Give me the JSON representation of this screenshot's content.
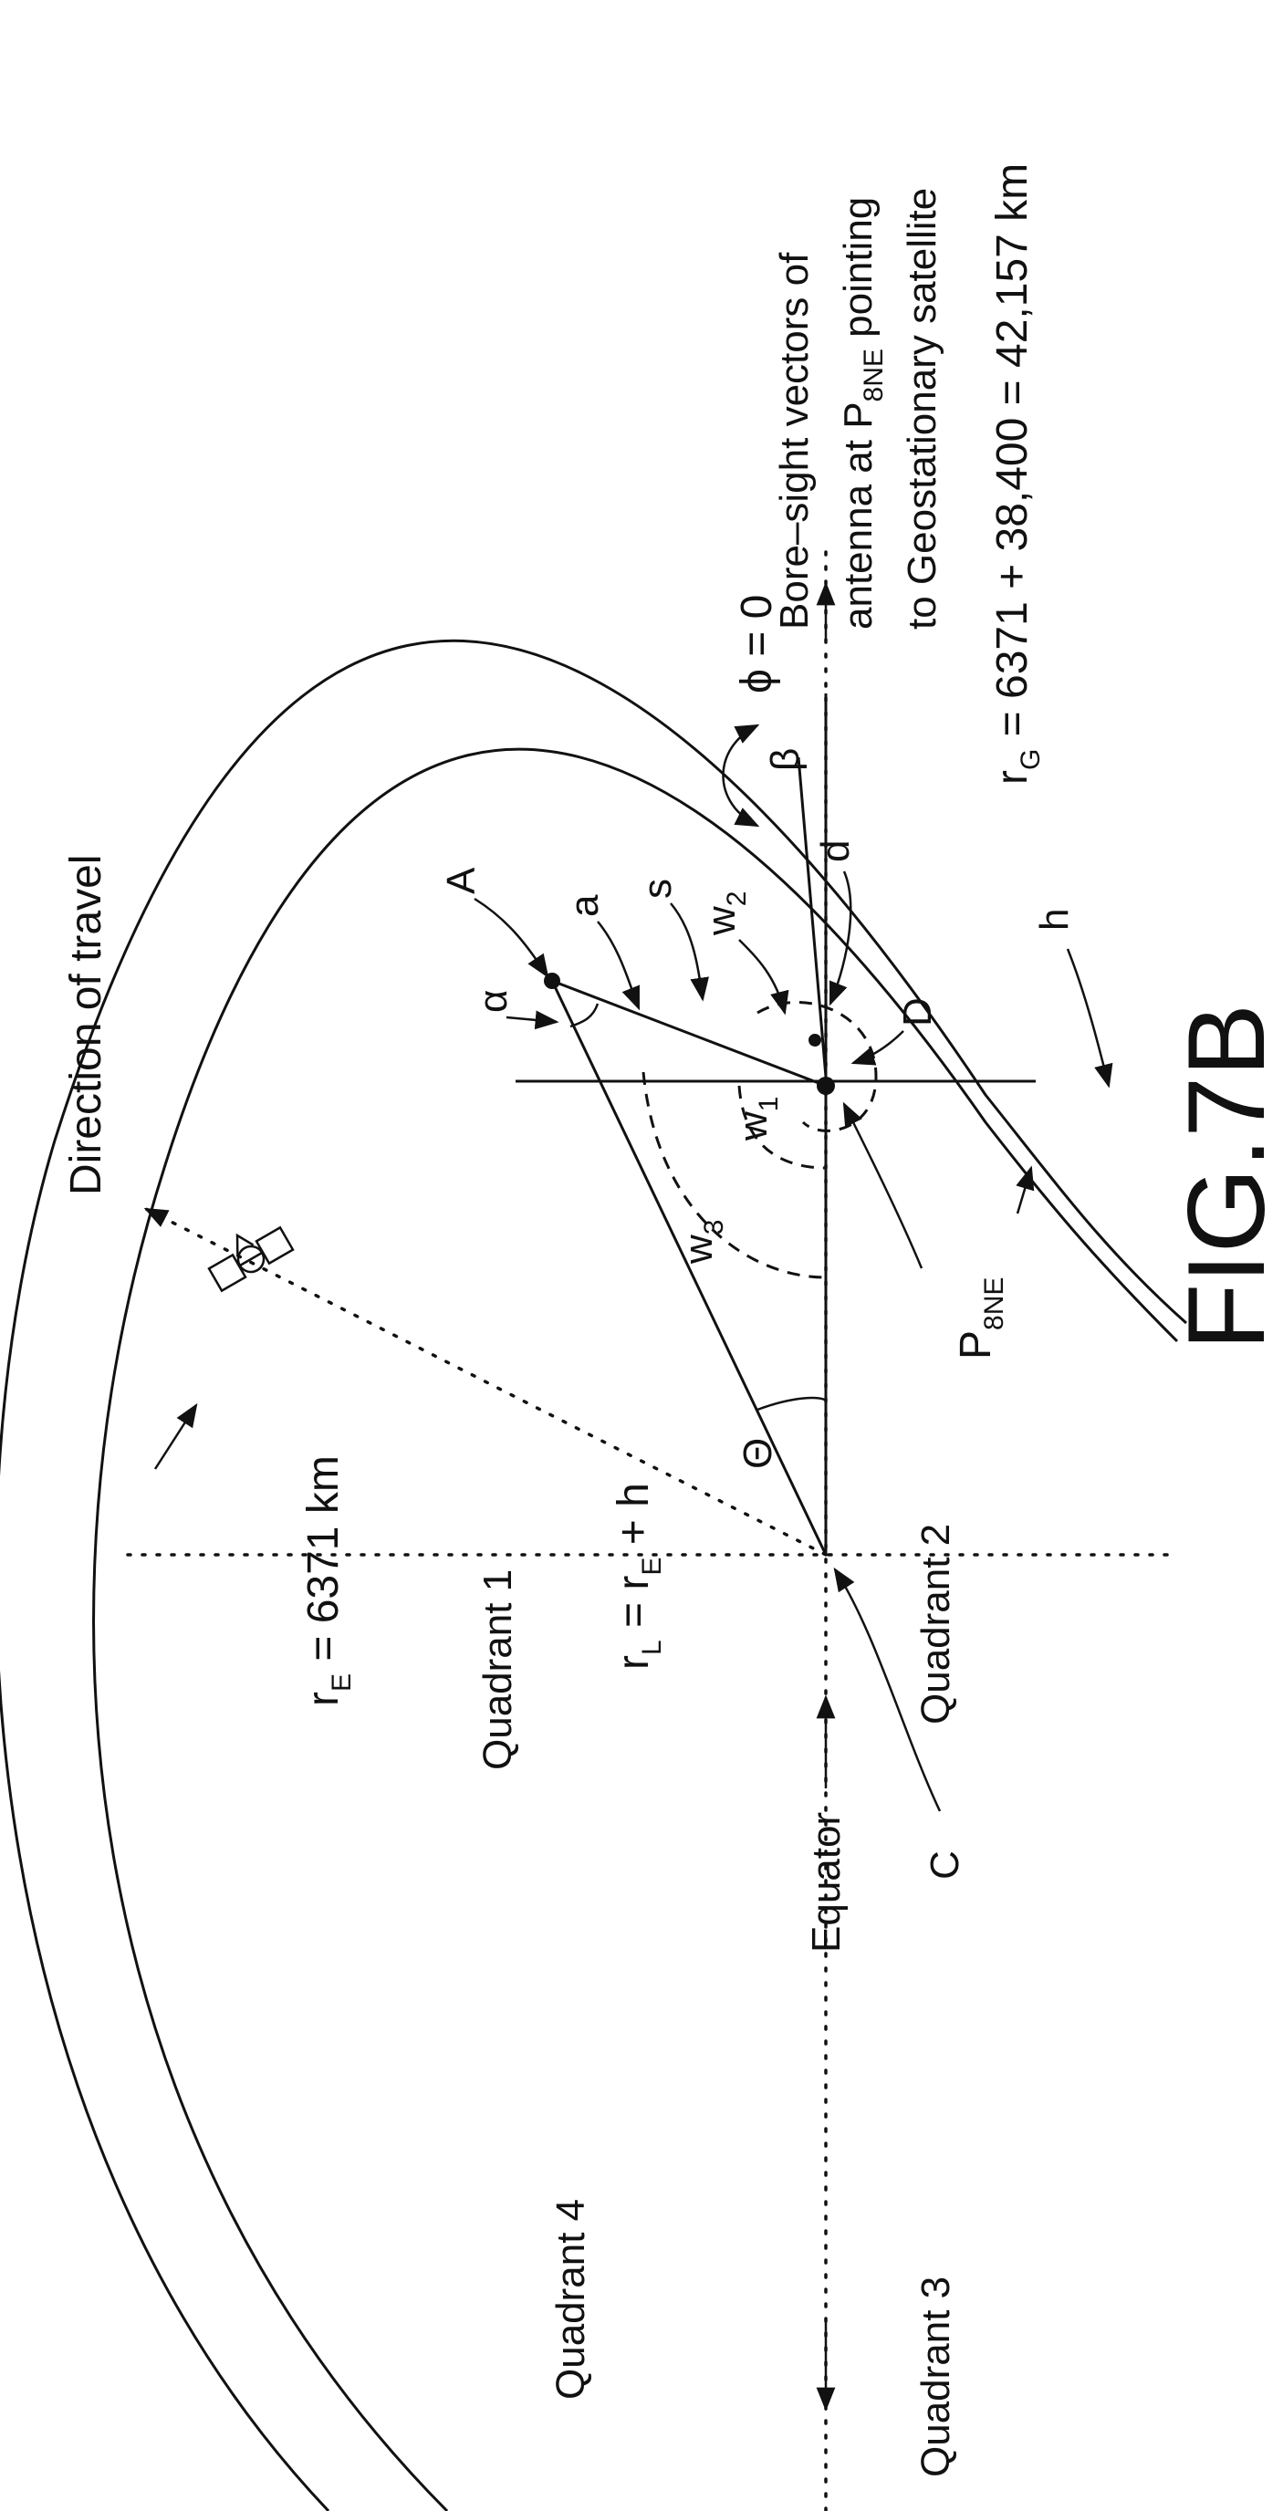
{
  "figure_id": "FIG.7B",
  "labels": {
    "direction": "Direction of travel",
    "r_e": "r",
    "r_e_sub": "E",
    "r_e_eq": " = 6371 km",
    "quadrant1": "Quadrant 1",
    "quadrant2": "Quadrant 2",
    "quadrant3": "Quadrant 3",
    "quadrant4": "Quadrant 4",
    "r_l": "r",
    "r_l_sub": "L",
    "r_l_eq": " = r",
    "r_l_sub2": "E",
    "r_l_tail": " + h",
    "theta": "Θ",
    "w3": "w",
    "w3_sub": "3",
    "w1": "w",
    "w1_sub": "1",
    "w2": "w",
    "w2_sub": "2",
    "alpha": "α",
    "beta": "β",
    "pt_A": "A",
    "pt_a": "a",
    "pt_s": "s",
    "pt_d": "d",
    "pt_D": "D",
    "pt_h": "h",
    "pt_C": "C",
    "p8ne": "P",
    "p8ne_sub": "8NE",
    "phi": "ϕ = 0",
    "equator": "Equator",
    "bore1": "Bore–sight vectors of",
    "bore2_a": "antenna at P",
    "bore2_sub": "8NE",
    "bore2_b": " pointing",
    "bore3": "to Geostationary satellite",
    "r_g": "r",
    "r_g_sub": "G",
    "r_g_eq": " = 6371 + 38,400 = 42,157 km"
  }
}
